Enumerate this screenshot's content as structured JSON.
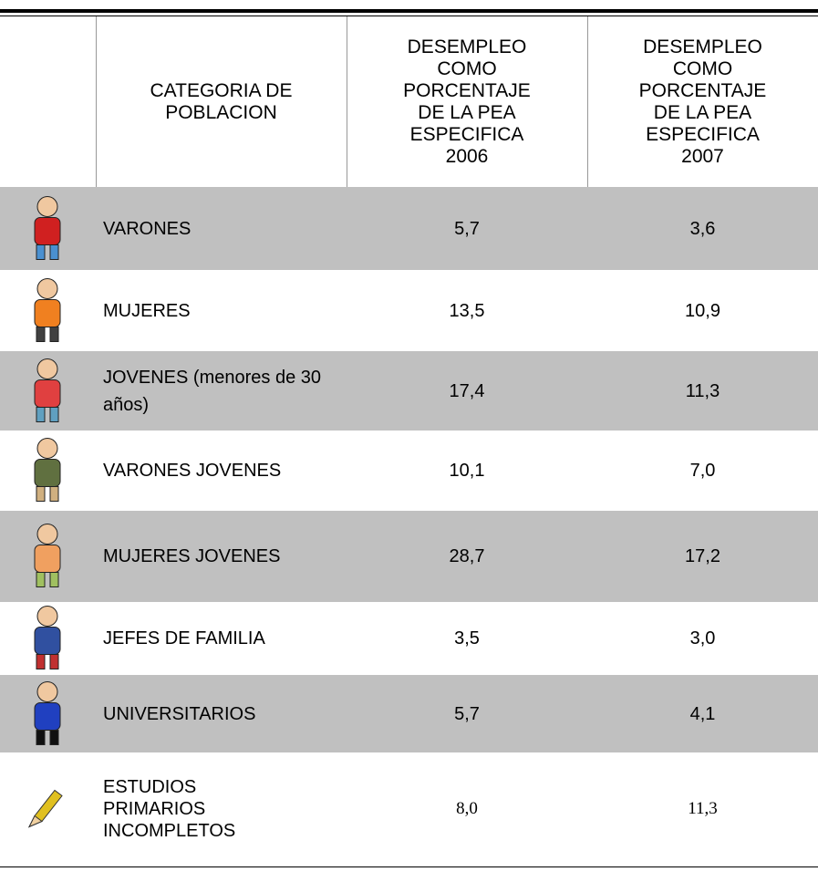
{
  "table": {
    "header": [
      "CATEGORIA DE POBLACION",
      "DESEMPLEO COMO PORCENTAJE DE LA PEA ESPECIFICA 2006",
      "DESEMPLEO COMO PORCENTAJE DE LA PEA ESPECIFICA 2007"
    ],
    "rows": [
      [
        "VARONES",
        "5,7",
        "3,6"
      ],
      [
        "MUJERES",
        "13,5",
        "10,9"
      ],
      [
        "JOVENES (menores de 30 años)",
        "17,4",
        "11,3"
      ],
      [
        "VARONES JOVENES",
        "10,1",
        "7,0"
      ],
      [
        "MUJERES JOVENES",
        "28,7",
        "17,2"
      ],
      [
        "JEFES DE FAMILIA",
        "3,5",
        "3,0"
      ],
      [
        "UNIVERSITARIOS",
        "5,7",
        "4,1"
      ],
      [
        "ESTUDIOS PRIMARIOS INCOMPLETOS",
        "8,0",
        "11,3"
      ]
    ]
  }
}
